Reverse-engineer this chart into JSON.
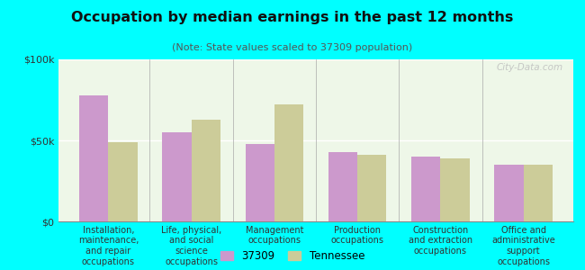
{
  "title": "Occupation by median earnings in the past 12 months",
  "subtitle": "(Note: State values scaled to 37309 population)",
  "categories": [
    "Installation,\nmaintenance,\nand repair\noccupations",
    "Life, physical,\nand social\nscience\noccupations",
    "Management\noccupations",
    "Production\noccupations",
    "Construction\nand extraction\noccupations",
    "Office and\nadministrative\nsupport\noccupations"
  ],
  "values_37309": [
    78000,
    55000,
    48000,
    43000,
    40000,
    35000
  ],
  "values_tennessee": [
    49000,
    63000,
    72000,
    41000,
    39000,
    35000
  ],
  "color_37309": "#cc99cc",
  "color_tennessee": "#cccc99",
  "background_color": "#00ffff",
  "ylim": [
    0,
    100000
  ],
  "ytick_labels": [
    "$0",
    "$50k",
    "$100k"
  ],
  "legend_label_37309": "37309",
  "legend_label_tennessee": "Tennessee",
  "watermark": "City-Data.com"
}
